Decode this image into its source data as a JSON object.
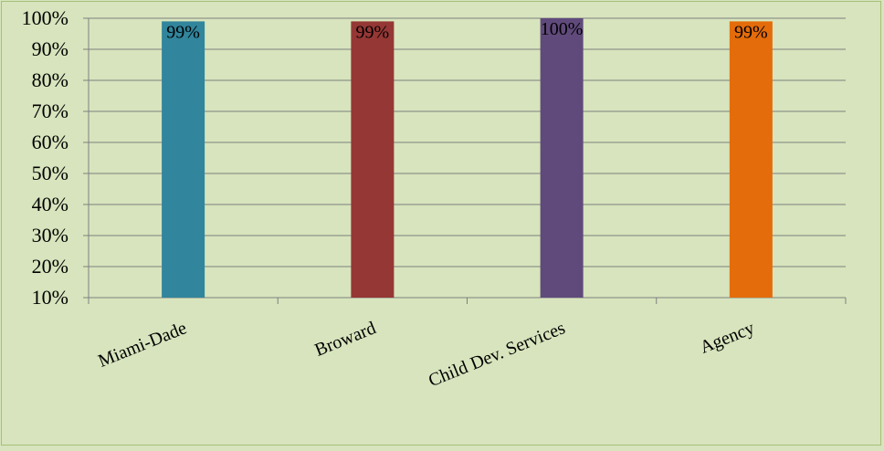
{
  "chart_data": {
    "type": "bar",
    "categories": [
      "Miami-Dade",
      "Broward",
      "Child Dev. Services",
      "Agency"
    ],
    "values": [
      99,
      99,
      100,
      99
    ],
    "data_labels": [
      "99%",
      "99%",
      "100%",
      "99%"
    ],
    "colors": [
      "#31859c",
      "#953735",
      "#604a7b",
      "#e46c0a"
    ],
    "ylim": [
      10,
      100
    ],
    "ytick_labels": [
      "10%",
      "20%",
      "30%",
      "40%",
      "50%",
      "60%",
      "70%",
      "80%",
      "90%",
      "100%"
    ],
    "grid": true,
    "legend": "none",
    "gridline_color": "#7f7f7f",
    "background_color": "#d7e4bd"
  }
}
